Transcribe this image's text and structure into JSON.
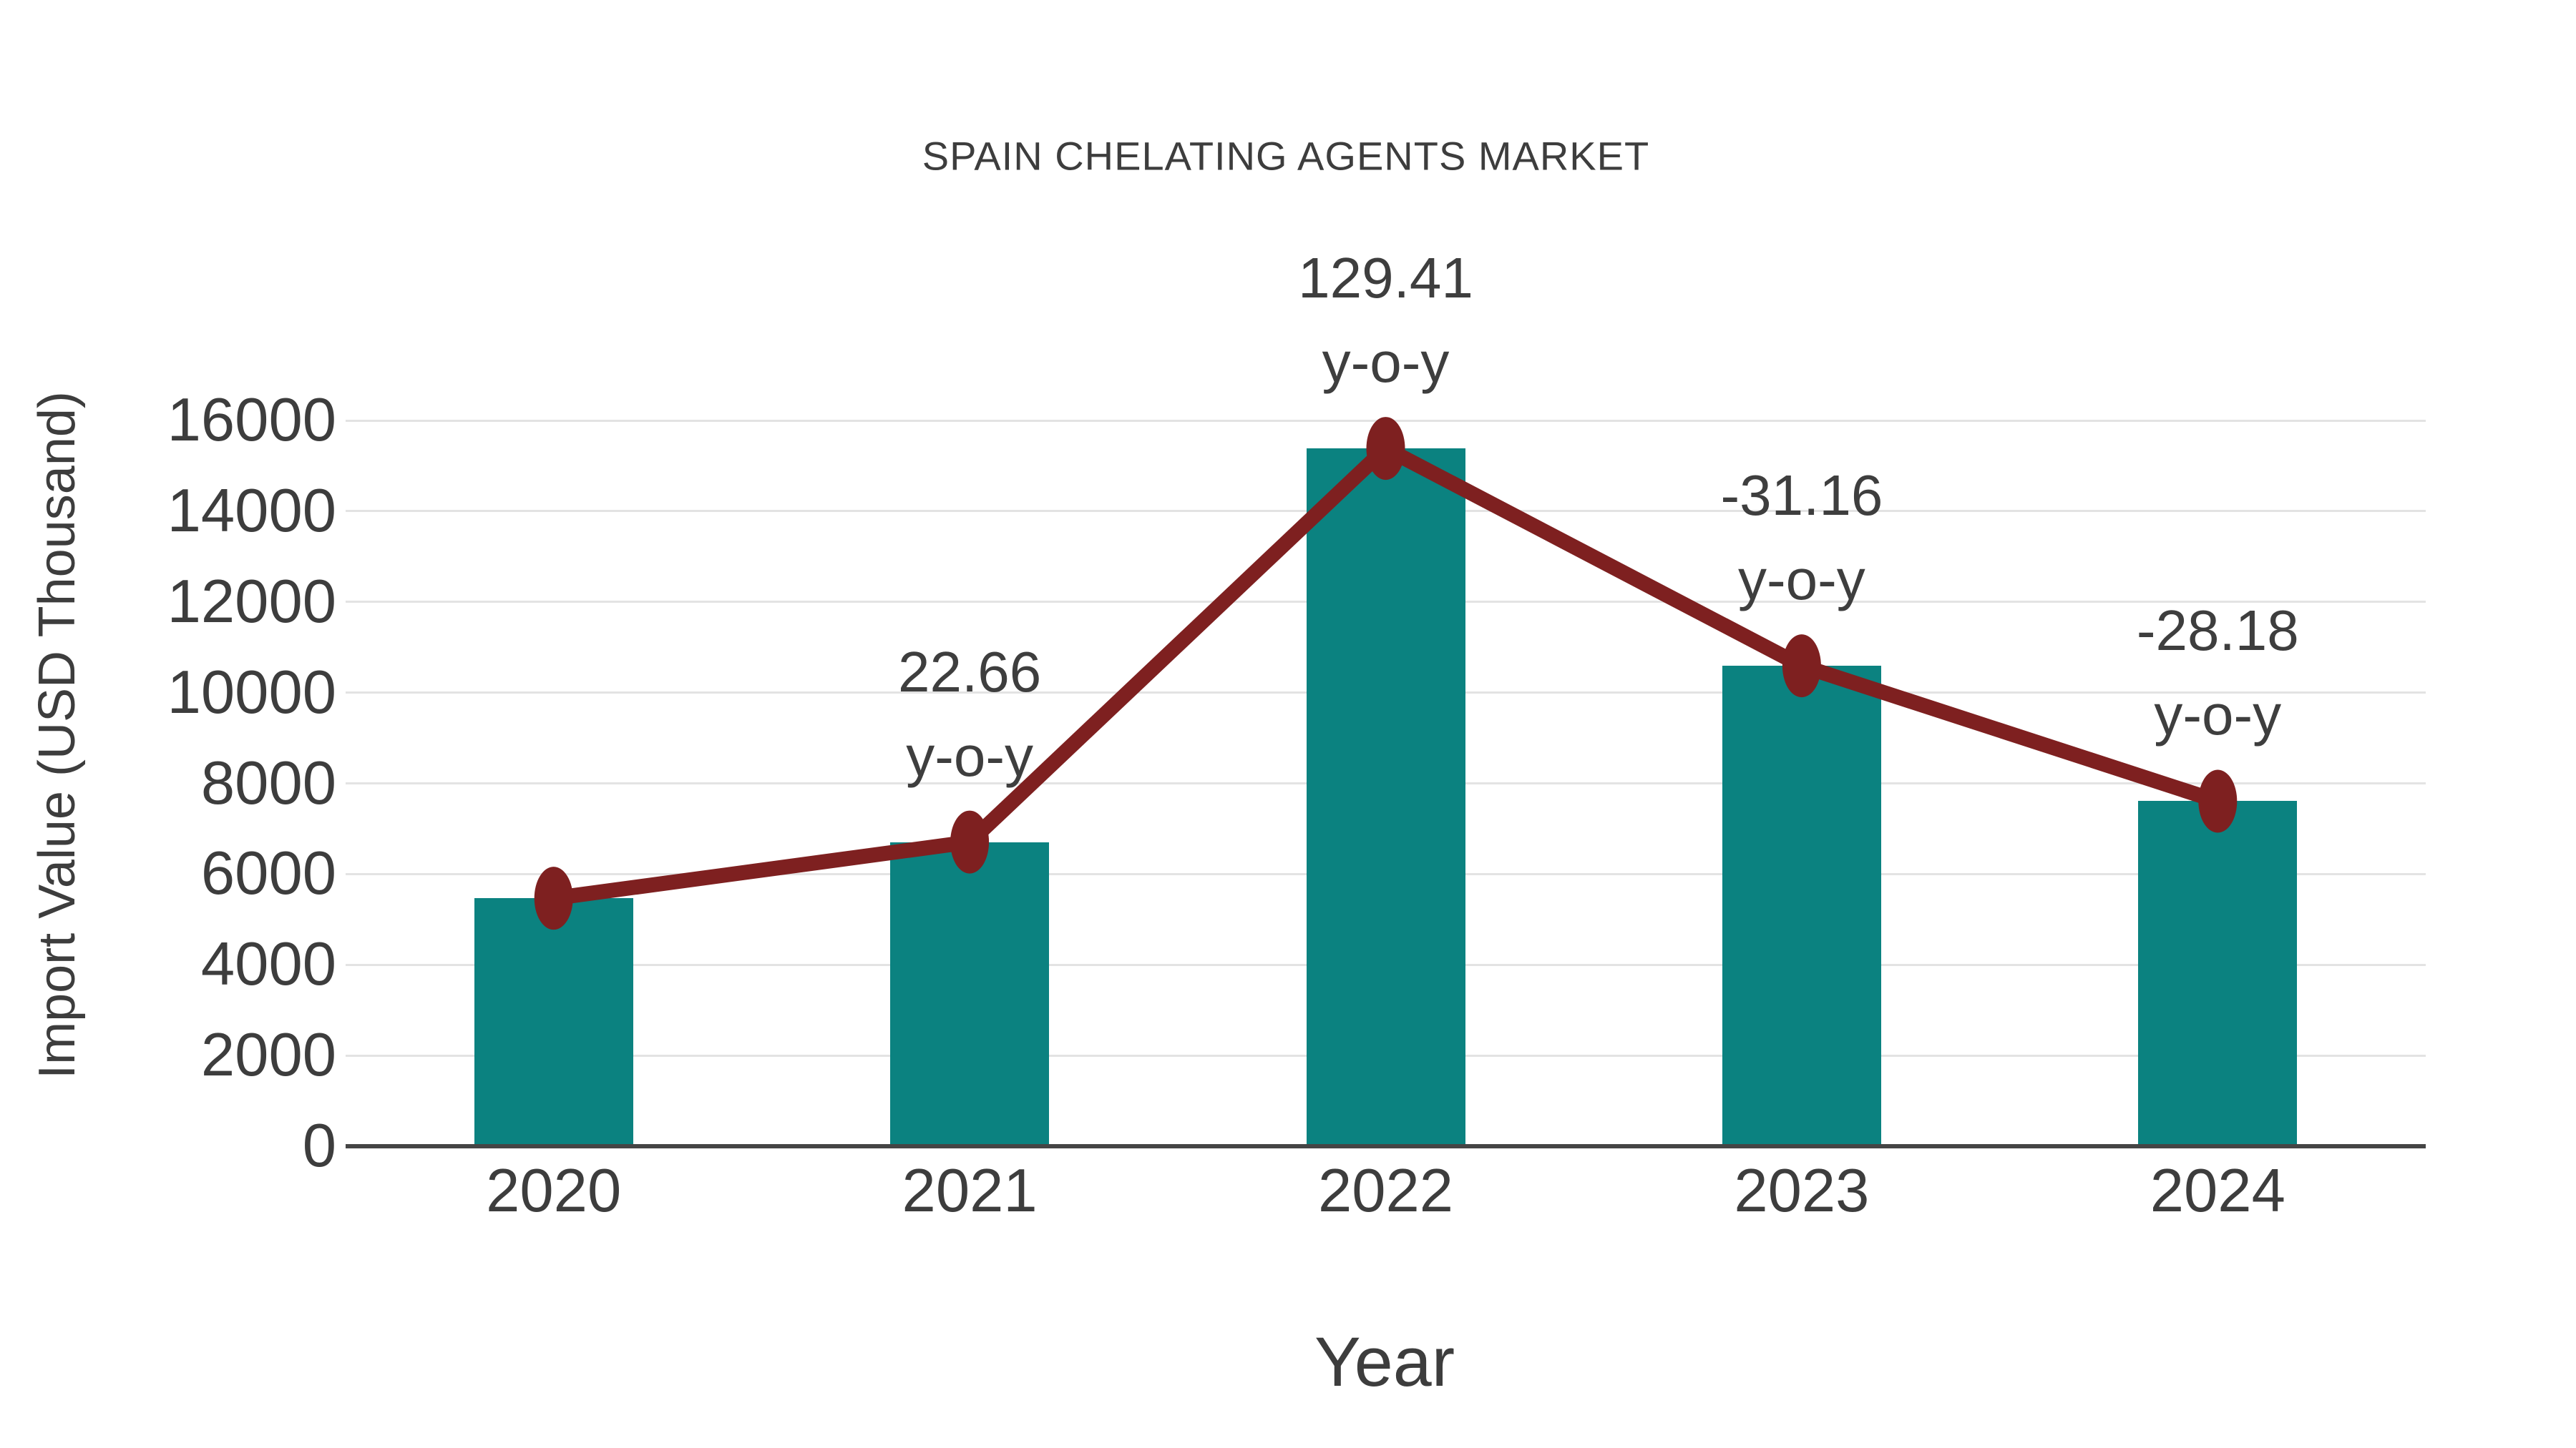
{
  "title": "SPAIN CHELATING AGENTS MARKET",
  "chart_data": {
    "type": "bar",
    "title": "SPAIN CHELATING AGENTS MARKET",
    "xlabel": "Year",
    "ylabel": "Import Value (USD Thousand)",
    "categories": [
      "2020",
      "2021",
      "2022",
      "2023",
      "2024"
    ],
    "series": [
      {
        "name": "Import Value (USD Thousand)",
        "type": "bar",
        "values": [
          5467,
          6706,
          15384,
          10591,
          7606
        ]
      },
      {
        "name": "y-o-y trend line",
        "type": "line",
        "values": [
          5467,
          6706,
          15384,
          10591,
          7606
        ]
      }
    ],
    "annotations": [
      null,
      "22.66",
      "129.41",
      "-31.16",
      "-28.18"
    ],
    "annotation_suffix": "y-o-y",
    "ylim": [
      0,
      16000
    ],
    "ytick_step": 2000,
    "yticks": [
      "0",
      "2000",
      "4000",
      "6000",
      "8000",
      "10000",
      "12000",
      "14000",
      "16000"
    ],
    "grid": "horizontal",
    "legend": "none",
    "colors": {
      "bar": "#0B8280",
      "line": "#7E2020",
      "marker": "#7E2020",
      "grid": "#E3E3E3",
      "axis": "#454545",
      "text": "#3D3D3D"
    }
  }
}
